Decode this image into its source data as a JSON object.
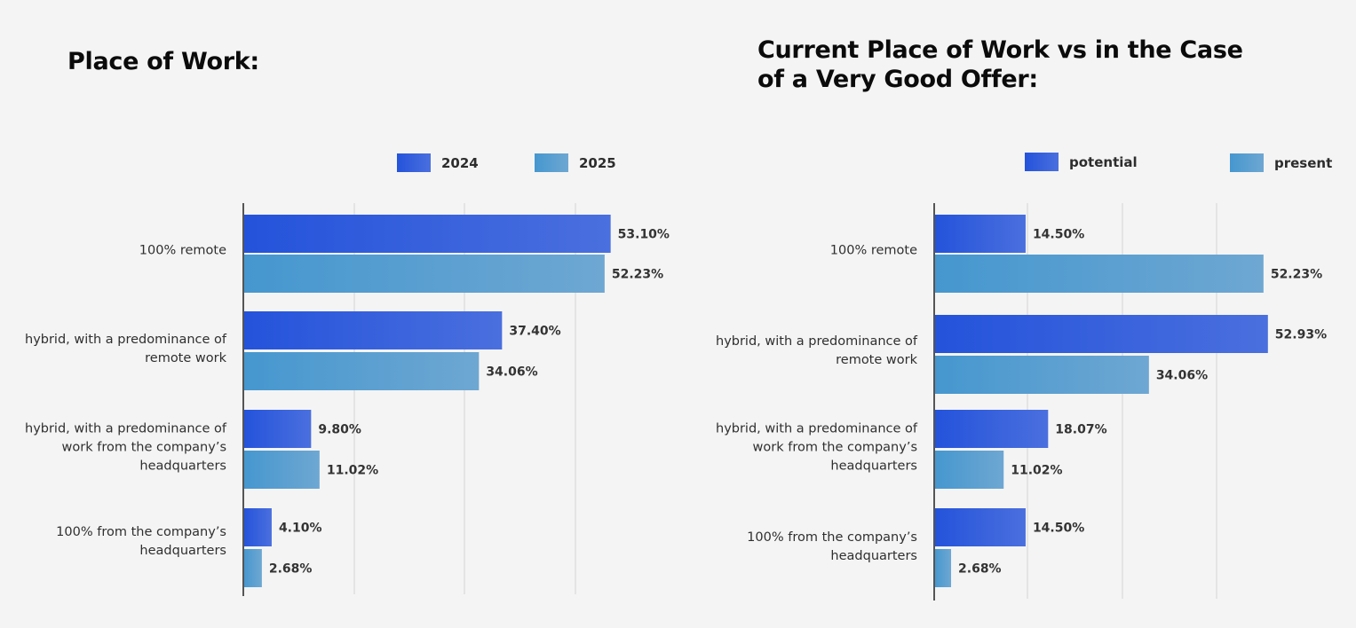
{
  "chart_data": [
    {
      "type": "bar",
      "orientation": "horizontal",
      "title": "Place of Work:",
      "categories": [
        "100% remote",
        "hybrid, with a predominance of remote work",
        "hybrid, with a predominance of work from the company’s headquarters",
        "100% from the company’s headquarters"
      ],
      "series": [
        {
          "name": "2024",
          "values": [
            53.1,
            37.4,
            9.8,
            4.1
          ],
          "labels": [
            "53.10%",
            "37.40%",
            "9.80%",
            "4.10%"
          ]
        },
        {
          "name": "2025",
          "values": [
            52.23,
            34.06,
            11.02,
            2.68
          ],
          "labels": [
            "52.23%",
            "34.06%",
            "11.02%",
            "2.68%"
          ]
        }
      ],
      "xlim": [
        0,
        60
      ],
      "grid": true,
      "legend": "top-right"
    },
    {
      "type": "bar",
      "orientation": "horizontal",
      "title": "Current Place of Work vs in the Case of a Very Good Offer:",
      "categories": [
        "100% remote",
        "hybrid, with a predominance of remote work",
        "hybrid, with a predominance of work from the company’s headquarters",
        "100% from the company’s headquarters"
      ],
      "series": [
        {
          "name": "potential",
          "values": [
            14.5,
            52.93,
            18.07,
            14.5
          ],
          "labels": [
            "14.50%",
            "52.93%",
            "18.07%",
            "14.50%"
          ]
        },
        {
          "name": "present",
          "values": [
            52.23,
            34.06,
            11.02,
            2.68
          ],
          "labels": [
            "52.23%",
            "34.06%",
            "11.02%",
            "2.68%"
          ]
        }
      ],
      "xlim": [
        0,
        55
      ],
      "grid": true,
      "legend": "top-right"
    }
  ],
  "colors": {
    "series1_start": "#2453db",
    "series1_end": "#4a6fde",
    "series2_start": "#4597cf",
    "series2_end": "#6ea7d2",
    "axis": "#555555",
    "grid": "#d3d3d3"
  }
}
